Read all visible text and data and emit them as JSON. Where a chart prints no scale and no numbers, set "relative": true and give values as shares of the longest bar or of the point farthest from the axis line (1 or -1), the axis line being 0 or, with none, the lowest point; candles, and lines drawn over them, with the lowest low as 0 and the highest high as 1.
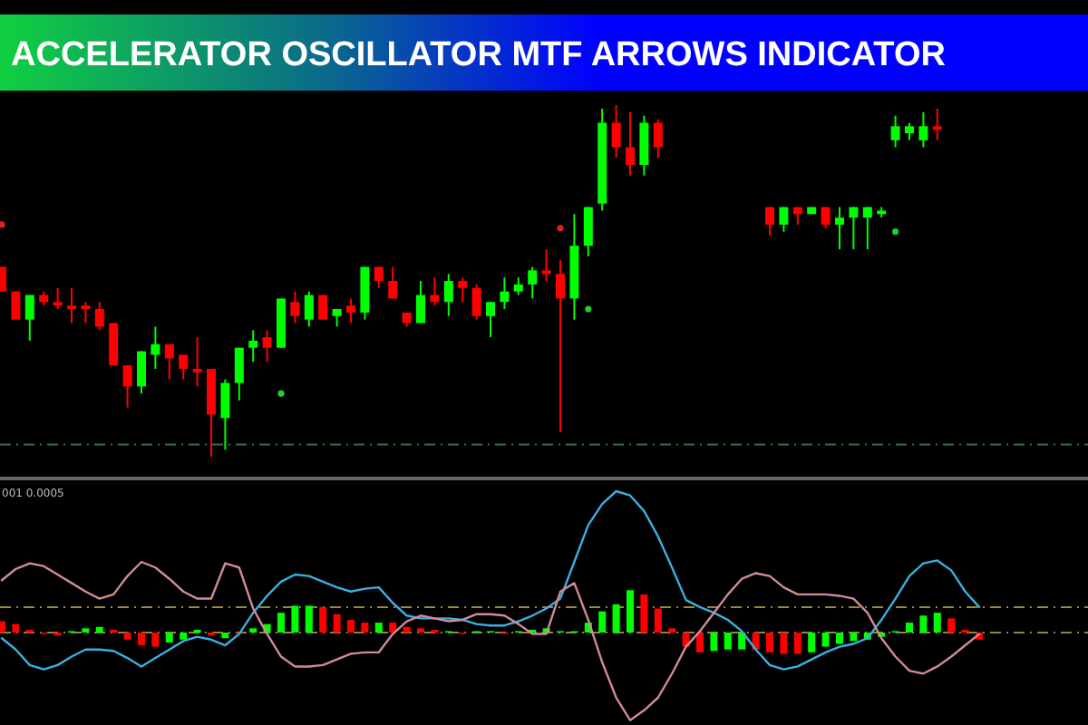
{
  "chart_data": [
    {
      "type": "candlestick",
      "title": "ACCELERATOR OSCILLATOR MTF ARROWS INDICATOR",
      "relative": true,
      "categories": [
        null,
        null,
        null,
        null,
        null,
        null,
        null,
        null,
        null,
        null,
        null,
        null,
        null,
        null,
        null,
        null,
        null,
        null,
        null,
        null,
        null,
        null,
        null,
        null,
        null,
        null,
        null,
        null,
        null,
        null,
        null,
        null,
        null,
        null,
        null,
        null,
        null,
        null,
        null,
        null,
        null,
        null,
        null,
        null,
        null,
        null,
        null,
        null,
        null,
        null,
        null,
        null,
        null,
        null,
        null,
        null,
        null,
        null,
        null,
        null,
        null,
        null,
        null,
        null,
        null,
        null,
        null,
        null,
        null,
        null,
        null
      ],
      "ohlc": [
        [
          0.54,
          0.54,
          0.47,
          0.47
        ],
        [
          0.47,
          0.47,
          0.39,
          0.39
        ],
        [
          0.39,
          0.46,
          0.33,
          0.46
        ],
        [
          0.46,
          0.47,
          0.43,
          0.44
        ],
        [
          0.44,
          0.48,
          0.42,
          0.43
        ],
        [
          0.43,
          0.48,
          0.38,
          0.42
        ],
        [
          0.43,
          0.44,
          0.38,
          0.42
        ],
        [
          0.42,
          0.44,
          0.36,
          0.37
        ],
        [
          0.38,
          0.38,
          0.26,
          0.26
        ],
        [
          0.26,
          0.26,
          0.14,
          0.2
        ],
        [
          0.2,
          0.3,
          0.18,
          0.3
        ],
        [
          0.29,
          0.37,
          0.25,
          0.32
        ],
        [
          0.32,
          0.32,
          0.22,
          0.28
        ],
        [
          0.29,
          0.29,
          0.22,
          0.25
        ],
        [
          0.25,
          0.34,
          0.2,
          0.24
        ],
        [
          0.25,
          0.25,
          0,
          0.12
        ],
        [
          0.11,
          0.22,
          0.02,
          0.21
        ],
        [
          0.21,
          0.31,
          0.16,
          0.31
        ],
        [
          0.31,
          0.36,
          0.27,
          0.33
        ],
        [
          0.34,
          0.36,
          0.27,
          0.31
        ],
        [
          0.31,
          0.45,
          0.31,
          0.45
        ],
        [
          0.44,
          0.47,
          0.38,
          0.4
        ],
        [
          0.39,
          0.47,
          0.37,
          0.46
        ],
        [
          0.46,
          0.46,
          0.39,
          0.39
        ],
        [
          0.4,
          0.42,
          0.37,
          0.42
        ],
        [
          0.43,
          0.45,
          0.38,
          0.41
        ],
        [
          0.41,
          0.54,
          0.39,
          0.54
        ],
        [
          0.54,
          0.54,
          0.48,
          0.5
        ],
        [
          0.5,
          0.54,
          0.45,
          0.45
        ],
        [
          0.41,
          0.41,
          0.37,
          0.38
        ],
        [
          0.38,
          0.5,
          0.38,
          0.46
        ],
        [
          0.46,
          0.51,
          0.43,
          0.44
        ],
        [
          0.44,
          0.52,
          0.4,
          0.5
        ],
        [
          0.5,
          0.51,
          0.44,
          0.48
        ],
        [
          0.48,
          0.49,
          0.39,
          0.4
        ],
        [
          0.4,
          0.44,
          0.34,
          0.44
        ],
        [
          0.44,
          0.51,
          0.42,
          0.47
        ],
        [
          0.47,
          0.51,
          0.46,
          0.49
        ],
        [
          0.49,
          0.54,
          0.45,
          0.53
        ],
        [
          0.53,
          0.59,
          0.5,
          0.52
        ],
        [
          0.52,
          0.56,
          0.07,
          0.45
        ],
        [
          0.45,
          0.69,
          0.39,
          0.6
        ],
        [
          0.6,
          0.71,
          0.57,
          0.71
        ],
        [
          0.72,
          0.99,
          0.7,
          0.95
        ],
        [
          0.95,
          1,
          0.85,
          0.88
        ],
        [
          0.88,
          0.98,
          0.8,
          0.83
        ],
        [
          0.83,
          0.97,
          0.8,
          0.95
        ],
        [
          0.95,
          0.96,
          0.85,
          0.88
        ],
        null,
        null,
        null,
        null,
        null,
        null,
        null,
        [
          0.71,
          0.71,
          0.63,
          0.66
        ],
        [
          0.66,
          0.71,
          0.64,
          0.71
        ],
        [
          0.71,
          0.71,
          0.66,
          0.69
        ],
        [
          0.69,
          0.71,
          0.69,
          0.71
        ],
        [
          0.71,
          0.71,
          0.65,
          0.66
        ],
        [
          0.66,
          0.71,
          0.59,
          0.68
        ],
        [
          0.68,
          0.71,
          0.59,
          0.71
        ],
        [
          0.68,
          0.71,
          0.59,
          0.71
        ],
        [
          0.69,
          0.71,
          0.68,
          0.7
        ],
        [
          0.9,
          0.97,
          0.88,
          0.94
        ],
        [
          0.92,
          0.95,
          0.9,
          0.94
        ],
        [
          0.9,
          0.98,
          0.88,
          0.94
        ],
        [
          0.94,
          0.99,
          0.9,
          0.93
        ],
        null,
        null,
        null
      ],
      "colors": [
        "#ff0000",
        "#ff0000",
        "#00ff00",
        "#ff0000",
        "#ff0000",
        "#ff0000",
        "#ff0000",
        "#ff0000",
        "#ff0000",
        "#ff0000",
        "#00ff00",
        "#00ff00",
        "#ff0000",
        "#ff0000",
        "#ff0000",
        "#ff0000",
        "#00ff00",
        "#00ff00",
        "#00ff00",
        "#ff0000",
        "#00ff00",
        "#ff0000",
        "#00ff00",
        "#ff0000",
        "#00ff00",
        "#ff0000",
        "#00ff00",
        "#ff0000",
        "#ff0000",
        "#ff0000",
        "#00ff00",
        "#ff0000",
        "#00ff00",
        "#ff0000",
        "#ff0000",
        "#00ff00",
        "#00ff00",
        "#00ff00",
        "#00ff00",
        "#ff0000",
        "#ff0000",
        "#00ff00",
        "#00ff00",
        "#00ff00",
        "#ff0000",
        "#ff0000",
        "#00ff00",
        "#ff0000",
        null,
        null,
        null,
        null,
        null,
        null,
        null,
        "#ff0000",
        "#00ff00",
        "#ff0000",
        "#00ff00",
        "#ff0000",
        "#00ff00",
        "#00ff00",
        "#00ff00",
        "#00ff00",
        "#00ff00",
        "#00ff00",
        "#00ff00",
        "#ff0000",
        null,
        null,
        null
      ],
      "series": [
        {
          "type": "scatter",
          "color": "#22cc33",
          "values": [
            null,
            null,
            null,
            null,
            null,
            null,
            null,
            null,
            null,
            null,
            null,
            null,
            null,
            null,
            null,
            null,
            null,
            null,
            null,
            null,
            0.18,
            null,
            null,
            null,
            null,
            null,
            null,
            null,
            null,
            null,
            null,
            null,
            null,
            null,
            null,
            null,
            null,
            null,
            null,
            null,
            null,
            null,
            0.42,
            null,
            null,
            null,
            null,
            null,
            null,
            null,
            null,
            null,
            null,
            null,
            null,
            null,
            null,
            null,
            null,
            null,
            null,
            null,
            null,
            null,
            0.64,
            null,
            null,
            null,
            null,
            null,
            null
          ]
        },
        {
          "type": "scatter",
          "color": "#dd2222",
          "values": [
            0.66,
            null,
            null,
            null,
            null,
            null,
            null,
            null,
            null,
            null,
            null,
            null,
            null,
            null,
            null,
            null,
            null,
            null,
            null,
            null,
            null,
            null,
            null,
            null,
            null,
            null,
            null,
            null,
            null,
            null,
            null,
            null,
            null,
            null,
            null,
            null,
            null,
            null,
            null,
            null,
            0.65,
            null,
            null,
            null,
            null,
            null,
            null,
            null,
            null,
            null,
            null,
            null,
            null,
            null,
            null,
            null,
            null,
            null,
            null,
            null,
            null,
            null,
            null,
            null,
            null,
            null,
            null,
            null,
            null,
            null,
            null
          ]
        }
      ],
      "ref_lines": [
        {
          "axis": "y",
          "value": 0.035,
          "color": "#2f6f4f",
          "line_style": "dashed"
        }
      ]
    },
    {
      "type": "bar",
      "relative": true,
      "annotations": [
        "001 0.0005"
      ],
      "categories": [
        null,
        null,
        null,
        null,
        null,
        null,
        null,
        null,
        null,
        null,
        null,
        null,
        null,
        null,
        null,
        null,
        null,
        null,
        null,
        null,
        null,
        null,
        null,
        null,
        null,
        null,
        null,
        null,
        null,
        null,
        null,
        null,
        null,
        null,
        null,
        null,
        null,
        null,
        null,
        null,
        null,
        null,
        null,
        null,
        null,
        null,
        null,
        null,
        null,
        null,
        null,
        null,
        null,
        null,
        null,
        null,
        null,
        null,
        null,
        null,
        null,
        null,
        null,
        null,
        null,
        null,
        null,
        null,
        null,
        null,
        null
      ],
      "series": [
        {
          "type": "bar",
          "values": [
            0.08,
            0.06,
            0.02,
            -0.01,
            -0.02,
            0.01,
            0.03,
            0.04,
            0.02,
            -0.05,
            -0.09,
            -0.1,
            -0.07,
            -0.05,
            0.02,
            -0.02,
            -0.04,
            -0.01,
            0.03,
            0.06,
            0.14,
            0.19,
            0.19,
            0.18,
            0.13,
            0.09,
            0.07,
            0.07,
            0.07,
            0.04,
            0.03,
            0.02,
            0.01,
            -0.01,
            0.01,
            0.01,
            -0.01,
            0.01,
            0.02,
            0.03,
            0.01,
            0.01,
            0.07,
            0.15,
            0.2,
            0.3,
            0.27,
            0.17,
            0.03,
            -0.1,
            -0.14,
            -0.13,
            -0.12,
            -0.12,
            -0.12,
            -0.14,
            -0.15,
            -0.15,
            -0.14,
            -0.1,
            -0.08,
            -0.06,
            -0.05,
            -0.03,
            0.01,
            0.07,
            0.12,
            0.14,
            0.1,
            0.02,
            -0.05
          ],
          "colors": [
            "#ff0000",
            "#ff0000",
            "#ff0000",
            "#ff0000",
            "#ff0000",
            "#00ff00",
            "#00ff00",
            "#00ff00",
            "#ff0000",
            "#ff0000",
            "#ff0000",
            "#ff0000",
            "#00ff00",
            "#00ff00",
            "#00ff00",
            "#ff0000",
            "#00ff00",
            "#ff0000",
            "#00ff00",
            "#00ff00",
            "#00ff00",
            "#00ff00",
            "#00ff00",
            "#ff0000",
            "#ff0000",
            "#ff0000",
            "#ff0000",
            "#00ff00",
            "#ff0000",
            "#ff0000",
            "#ff0000",
            "#ff0000",
            "#00ff00",
            "#ff0000",
            "#00ff00",
            "#00ff00",
            "#ff0000",
            "#00ff00",
            "#00ff00",
            "#00ff00",
            "#00ff00",
            "#00ff00",
            "#00ff00",
            "#00ff00",
            "#00ff00",
            "#00ff00",
            "#ff0000",
            "#ff0000",
            "#ff0000",
            "#ff0000",
            "#ff0000",
            "#00ff00",
            "#00ff00",
            "#00ff00",
            "#ff0000",
            "#ff0000",
            "#ff0000",
            "#ff0000",
            "#00ff00",
            "#00ff00",
            "#00ff00",
            "#00ff00",
            "#00ff00",
            "#00ff00",
            "#00ff00",
            "#00ff00",
            "#00ff00",
            "#00ff00",
            "#ff0000",
            "#ff0000",
            "#ff0000"
          ]
        },
        {
          "type": "line",
          "color": "#3ab0e0",
          "values": [
            -0.04,
            -0.12,
            -0.23,
            -0.26,
            -0.23,
            -0.17,
            -0.12,
            -0.12,
            -0.13,
            -0.18,
            -0.24,
            -0.18,
            -0.12,
            -0.06,
            -0.03,
            -0.05,
            -0.09,
            -0.01,
            0.14,
            0.26,
            0.36,
            0.41,
            0.4,
            0.36,
            0.32,
            0.29,
            0.31,
            0.32,
            0.21,
            0.12,
            0.1,
            0.1,
            0.1,
            0.09,
            0.06,
            0.05,
            0.05,
            0.08,
            0.12,
            0.17,
            0.24,
            0.5,
            0.76,
            0.91,
            1,
            0.97,
            0.86,
            0.68,
            0.46,
            0.23,
            0.18,
            0.14,
            0.09,
            0.01,
            -0.12,
            -0.23,
            -0.26,
            -0.24,
            -0.19,
            -0.14,
            -0.1,
            -0.08,
            -0.04,
            0.09,
            0.24,
            0.4,
            0.49,
            0.51,
            0.44,
            0.29,
            0.18
          ]
        },
        {
          "type": "line",
          "color": "#d08a9a",
          "values": [
            0.37,
            0.45,
            0.49,
            0.47,
            0.41,
            0.35,
            0.29,
            0.24,
            0.27,
            0.4,
            0.5,
            0.46,
            0.38,
            0.29,
            0.24,
            0.24,
            0.49,
            0.46,
            0.17,
            -0.01,
            -0.17,
            -0.24,
            -0.24,
            -0.23,
            -0.19,
            -0.15,
            -0.14,
            -0.14,
            -0.01,
            0.08,
            0.12,
            0.1,
            0.08,
            0.09,
            0.13,
            0.13,
            0.12,
            0.06,
            -0.01,
            -0.01,
            0.29,
            0.35,
            0.09,
            -0.21,
            -0.46,
            -0.62,
            -0.55,
            -0.46,
            -0.29,
            -0.1,
            0.01,
            0.14,
            0.27,
            0.38,
            0.42,
            0.4,
            0.32,
            0.27,
            0.27,
            0.27,
            0.26,
            0.24,
            0.14,
            -0.04,
            -0.17,
            -0.27,
            -0.29,
            -0.24,
            -0.17,
            -0.09,
            -0.01
          ]
        }
      ],
      "ref_lines": [
        {
          "axis": "y",
          "value": 0,
          "color": "#8a8a3a",
          "line_style": "dashed"
        },
        {
          "axis": "y",
          "value": 0.18,
          "color": "#9a8a3a",
          "line_style": "dashed"
        }
      ]
    }
  ]
}
